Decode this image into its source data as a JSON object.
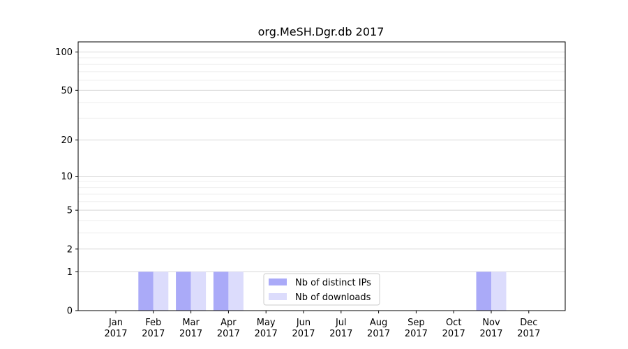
{
  "chart_data": {
    "type": "bar",
    "title": "org.MeSH.Dgr.db 2017",
    "xlabel": "",
    "ylabel": "",
    "categories": [
      "Jan\n2017",
      "Feb\n2017",
      "Mar\n2017",
      "Apr\n2017",
      "May\n2017",
      "Jun\n2017",
      "Jul\n2017",
      "Aug\n2017",
      "Sep\n2017",
      "Oct\n2017",
      "Nov\n2017",
      "Dec\n2017"
    ],
    "series": [
      {
        "name": "Nb of distinct IPs",
        "color": "#aaaaf8",
        "values": [
          0,
          1,
          1,
          1,
          0,
          0,
          0,
          0,
          0,
          0,
          1,
          0
        ]
      },
      {
        "name": "Nb of downloads",
        "color": "#dcdcfc",
        "values": [
          0,
          1,
          1,
          1,
          0,
          0,
          0,
          0,
          0,
          0,
          1,
          0
        ]
      }
    ],
    "yscale": "log1p",
    "yticks": [
      0,
      1,
      2,
      5,
      10,
      20,
      50,
      100
    ],
    "ylim": [
      0,
      120
    ],
    "grid": "y",
    "legend_position": "lower center"
  }
}
